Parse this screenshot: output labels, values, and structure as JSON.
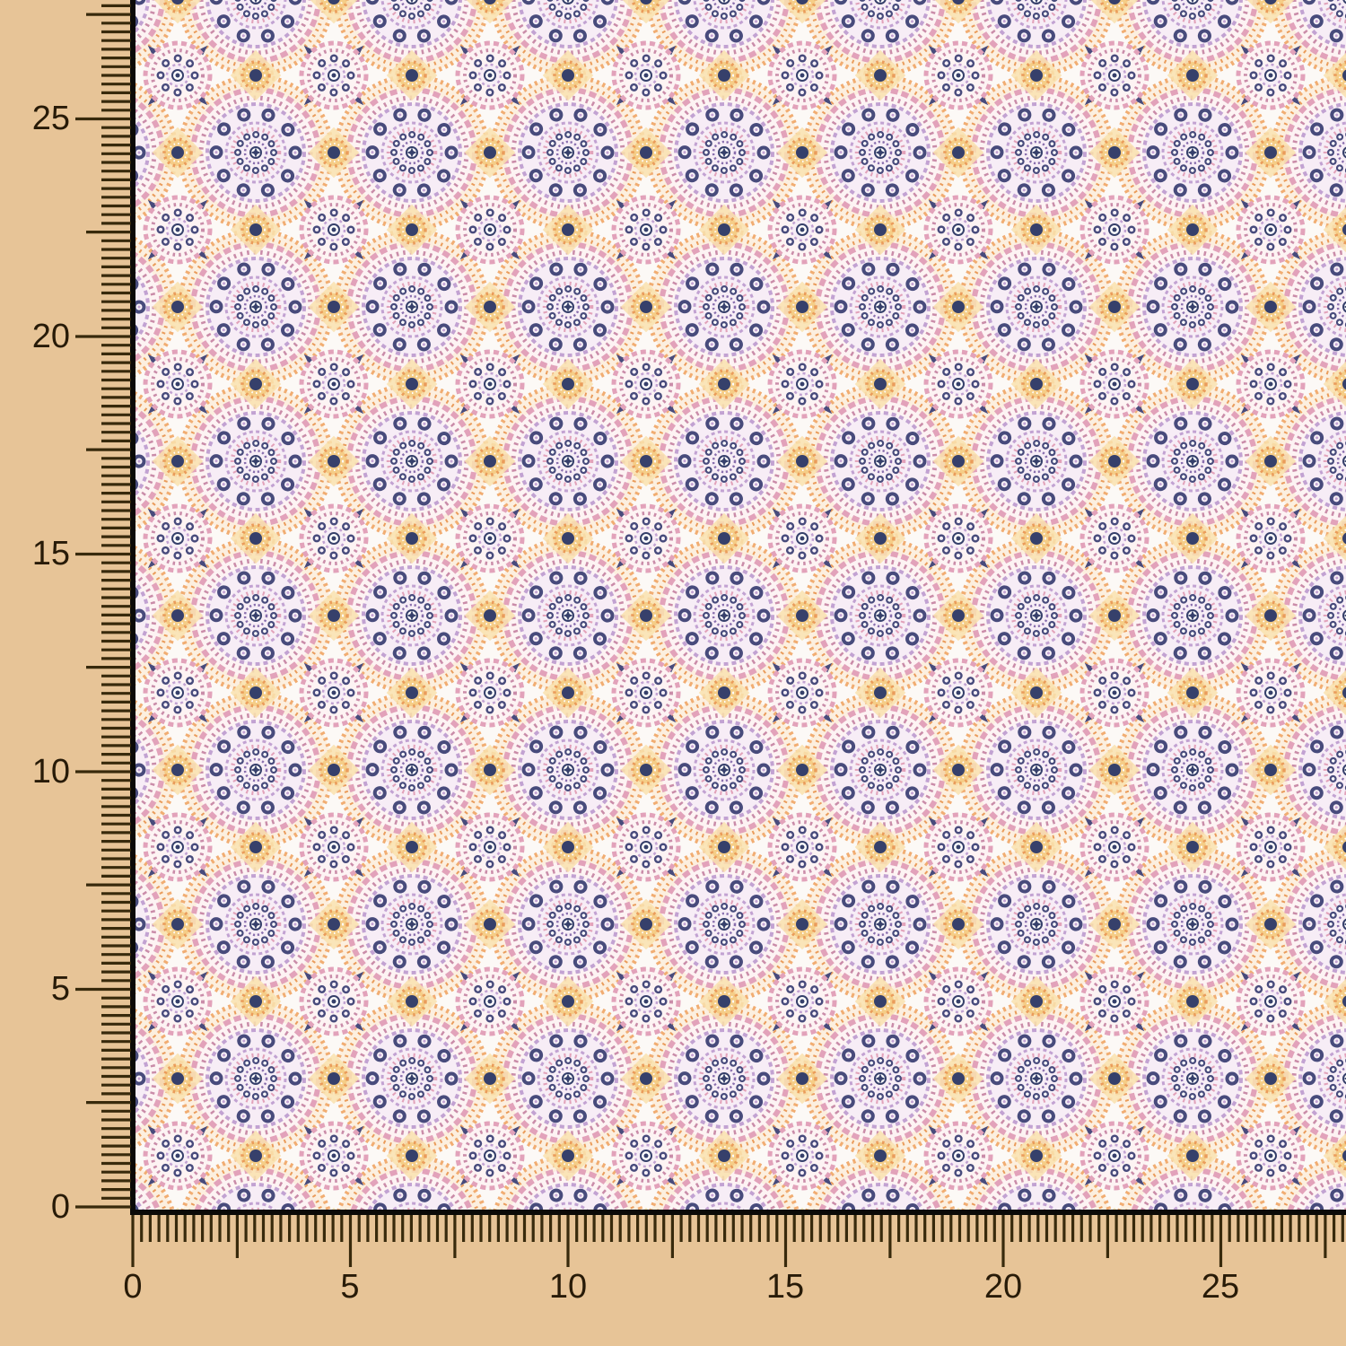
{
  "photo": {
    "description": "Swatch of mandala medallion print fabric in lilac, pink, navy and marigold on an off-white ground, framed by a black corner border over a tan board with measuring rulers along the left and bottom edges"
  },
  "rulers": {
    "left": {
      "labels": [
        "25",
        "20",
        "15",
        "10",
        "5",
        "0"
      ]
    },
    "bottom": {
      "labels": [
        "0",
        "5",
        "10",
        "15",
        "20",
        "25"
      ]
    },
    "major_step": 5,
    "minors_per_major": 25
  },
  "colors": {
    "canvas": "#e7c497",
    "tick": "#382a0c",
    "label": "#281b08",
    "border": "#0b0a08",
    "fabricBase": "#fcf9f6",
    "cream": "#fcefdf",
    "shell": "#fdf3f3",
    "blush": "#f7edf6",
    "lattice": "#f1d9e3",
    "navy": "#484b7c",
    "navyDark": "#36406b",
    "purple": "#8a6fae",
    "lilac": "#c2a2d2",
    "pink": "#e2a2ba",
    "pinkDeep": "#ca8ca9",
    "peach": "#f1ad72",
    "orange": "#ea9c5b",
    "yellow": "#f5cd87",
    "paleYellow": "#f9e2ae"
  }
}
